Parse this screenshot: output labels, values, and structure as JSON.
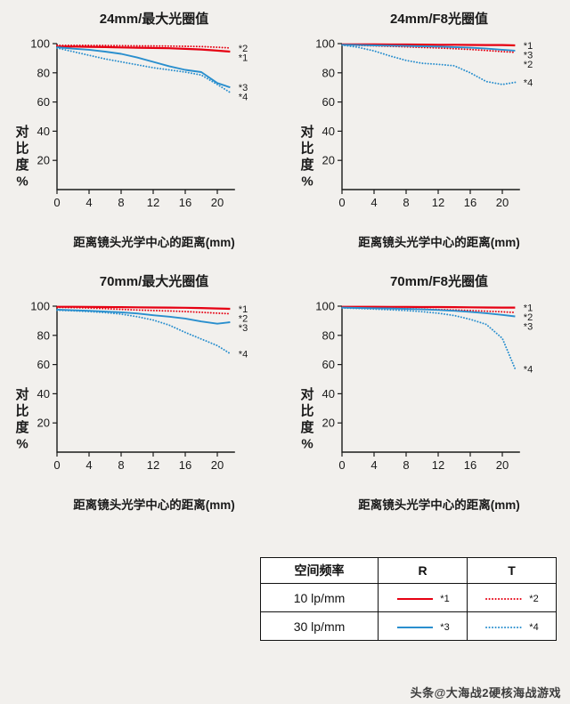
{
  "colors": {
    "red": "#e60012",
    "blue": "#2a8fce",
    "axis": "#1a1a1a",
    "background": "#f2f0ed"
  },
  "chart_data": {
    "type": "line",
    "x": [
      0,
      2,
      4,
      6,
      8,
      10,
      12,
      14,
      16,
      18,
      20,
      21.6
    ],
    "axis": {
      "y_ticks": [
        20,
        40,
        60,
        80,
        100
      ],
      "x_ticks": [
        0,
        4,
        8,
        12,
        16,
        20
      ],
      "y_max": 100,
      "x_axis_end": 22.2,
      "y_label_chars": [
        "对",
        "比",
        "度",
        "%"
      ],
      "x_label": "距离镜头光学中心的距离(mm)",
      "grid": "off",
      "legend_position": "bottom-table"
    },
    "charts": [
      {
        "title": "24mm/最大光圈值",
        "series": [
          {
            "label": "*1",
            "name": "10 lp/mm R",
            "color": "red",
            "style": "solid",
            "y": [
              98,
              98,
              97.8,
              97.6,
              97.4,
              97.2,
              97,
              96.8,
              96.4,
              96,
              95.2,
              94.5
            ]
          },
          {
            "label": "*2",
            "name": "10 lp/mm T",
            "color": "red",
            "style": "dotted",
            "y": [
              98.8,
              98.8,
              98.8,
              98.7,
              98.6,
              98.5,
              98.4,
              98.3,
              98.2,
              98,
              97.5,
              97
            ]
          },
          {
            "label": "*3",
            "name": "30 lp/mm R",
            "color": "blue",
            "style": "solid",
            "y": [
              97.5,
              96.5,
              95.8,
              94.5,
              93,
              90.5,
              87.5,
              84.5,
              82,
              80.5,
              73,
              70
            ]
          },
          {
            "label": "*4",
            "name": "30 lp/mm T",
            "color": "blue",
            "style": "dotted",
            "y": [
              97,
              94.5,
              92,
              89.5,
              87.5,
              85.5,
              83.5,
              82,
              80.5,
              78.5,
              72,
              66.5
            ]
          }
        ]
      },
      {
        "title": "24mm/F8光圈值",
        "series": [
          {
            "label": "*1",
            "name": "10 lp/mm R",
            "color": "red",
            "style": "solid",
            "y": [
              99.5,
              99.5,
              99.5,
              99.4,
              99.4,
              99.3,
              99.2,
              99.2,
              99.1,
              99,
              99,
              98.8
            ]
          },
          {
            "label": "*2",
            "name": "10 lp/mm T",
            "color": "red",
            "style": "dotted",
            "y": [
              99,
              98.8,
              98.5,
              98.2,
              97.8,
              97.4,
              97,
              96.5,
              96,
              95.3,
              94.5,
              94
            ]
          },
          {
            "label": "*3",
            "name": "30 lp/mm R",
            "color": "blue",
            "style": "solid",
            "y": [
              99.2,
              99,
              98.8,
              98.6,
              98.4,
              98.2,
              98,
              97.6,
              97.2,
              96.6,
              95.8,
              95.2
            ]
          },
          {
            "label": "*4",
            "name": "30 lp/mm T",
            "color": "blue",
            "style": "dotted",
            "y": [
              99,
              97.5,
              95,
              91.5,
              88.5,
              86.5,
              85.8,
              84.8,
              80,
              74,
              72,
              73.5
            ]
          }
        ]
      },
      {
        "title": "70mm/最大光圈值",
        "series": [
          {
            "label": "*1",
            "name": "10 lp/mm R",
            "color": "red",
            "style": "solid",
            "y": [
              99.6,
              99.6,
              99.5,
              99.4,
              99.3,
              99.2,
              99.1,
              99,
              98.9,
              98.7,
              98.4,
              98.2
            ]
          },
          {
            "label": "*2",
            "name": "10 lp/mm T",
            "color": "red",
            "style": "dotted",
            "y": [
              99.2,
              99,
              98.7,
              98.3,
              97.8,
              97.4,
              97,
              96.7,
              96.3,
              95.8,
              95.2,
              94.8
            ]
          },
          {
            "label": "*3",
            "name": "30 lp/mm R",
            "color": "blue",
            "style": "solid",
            "y": [
              97.6,
              97.2,
              96.8,
              96.3,
              95.8,
              95,
              93.8,
              92.8,
              91.5,
              89.5,
              88,
              89
            ]
          },
          {
            "label": "*4",
            "name": "30 lp/mm T",
            "color": "blue",
            "style": "dotted",
            "y": [
              97.2,
              96.8,
              96.3,
              95.6,
              94.6,
              92.8,
              90.5,
              87,
              82,
              77.5,
              73,
              67.5
            ]
          }
        ]
      },
      {
        "title": "70mm/F8光圈值",
        "series": [
          {
            "label": "*1",
            "name": "10 lp/mm R",
            "color": "red",
            "style": "solid",
            "y": [
              99.6,
              99.6,
              99.6,
              99.5,
              99.5,
              99.4,
              99.4,
              99.3,
              99.2,
              99.1,
              99,
              99
            ]
          },
          {
            "label": "*2",
            "name": "10 lp/mm T",
            "color": "red",
            "style": "dotted",
            "y": [
              99.2,
              99,
              98.8,
              98.6,
              98.3,
              98,
              97.7,
              97.4,
              97,
              96.6,
              96.1,
              95.7
            ]
          },
          {
            "label": "*3",
            "name": "30 lp/mm R",
            "color": "blue",
            "style": "solid",
            "y": [
              99,
              98.8,
              98.6,
              98.4,
              98.1,
              97.8,
              97.4,
              96.8,
              96.1,
              95.2,
              94,
              93
            ]
          },
          {
            "label": "*4",
            "name": "30 lp/mm T",
            "color": "blue",
            "style": "dotted",
            "y": [
              98.8,
              98.4,
              98,
              97.5,
              97,
              96.2,
              95.2,
              93.6,
              91,
              87.5,
              78,
              57
            ]
          }
        ]
      }
    ]
  },
  "legend": {
    "header": [
      "空间频率",
      "R",
      "T"
    ],
    "rows": [
      {
        "freq": "10 lp/mm",
        "color": "red",
        "r_label": "*1",
        "t_label": "*2"
      },
      {
        "freq": "30 lp/mm",
        "color": "blue",
        "r_label": "*3",
        "t_label": "*4"
      }
    ]
  },
  "watermark": "头条@大海战2硬核海战游戏"
}
